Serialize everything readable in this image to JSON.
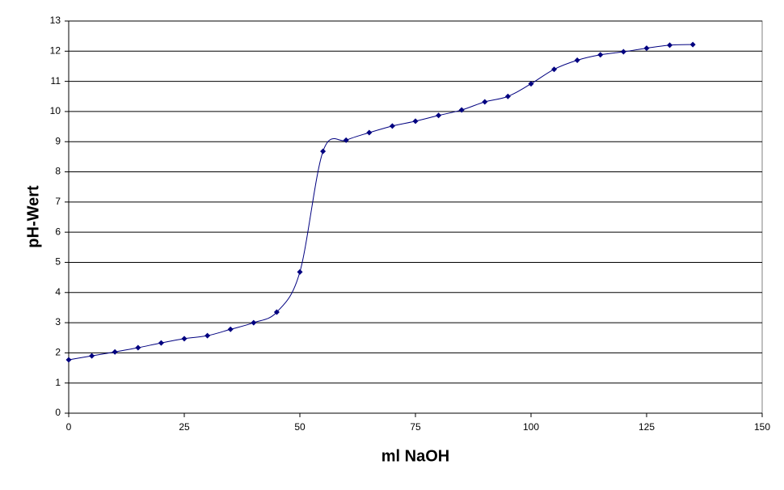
{
  "chart_data": {
    "type": "line",
    "x_label": "ml NaOH",
    "y_label": "pH-Wert",
    "series": [
      {
        "color": "#000080",
        "x": [
          0,
          5,
          10,
          15,
          20,
          25,
          30,
          35,
          40,
          45,
          50,
          55,
          60,
          65,
          70,
          75,
          80,
          85,
          90,
          95,
          100,
          105,
          110,
          115,
          120,
          125,
          130,
          135
        ],
        "values": [
          1.77,
          1.9,
          2.03,
          2.17,
          2.33,
          2.47,
          2.57,
          2.78,
          3.0,
          3.35,
          4.68,
          8.68,
          9.05,
          9.3,
          9.52,
          9.68,
          9.87,
          10.05,
          10.32,
          10.5,
          10.92,
          11.4,
          11.7,
          11.88,
          11.98,
          12.1,
          12.2,
          12.22
        ]
      }
    ],
    "xlim": [
      0,
      150
    ],
    "xticks": [
      0,
      25,
      50,
      75,
      100,
      125,
      150
    ],
    "ylim": [
      0,
      13
    ],
    "yticks": [
      0,
      1,
      2,
      3,
      4,
      5,
      6,
      7,
      8,
      9,
      10,
      11,
      12,
      13
    ],
    "grid": true,
    "smooth": true
  }
}
